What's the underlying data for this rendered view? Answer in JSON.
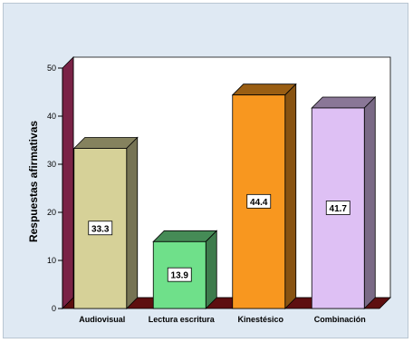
{
  "chart_data": {
    "type": "bar",
    "categories": [
      "Audiovisual",
      "Lectura escritura",
      "Kinestésico",
      "Combinación"
    ],
    "values": [
      33.3,
      13.9,
      44.4,
      41.7
    ],
    "value_labels": [
      "33.3",
      "13.9",
      "44.4",
      "41.7"
    ],
    "title": "",
    "xlabel": "",
    "ylabel": "Respuestas afirmativas",
    "ylim": [
      0,
      50
    ],
    "yticks": [
      "0",
      "10",
      "20",
      "30",
      "40",
      "50"
    ],
    "grid": false,
    "legend": "none",
    "colors": {
      "bars": [
        "#d6d198",
        "#6fe08a",
        "#f8971f",
        "#dec0f4"
      ],
      "back_wall": "#ffffff",
      "side_wall": "#7a2346",
      "floor": "#5e0f10",
      "background": "#dfe9f3"
    }
  }
}
